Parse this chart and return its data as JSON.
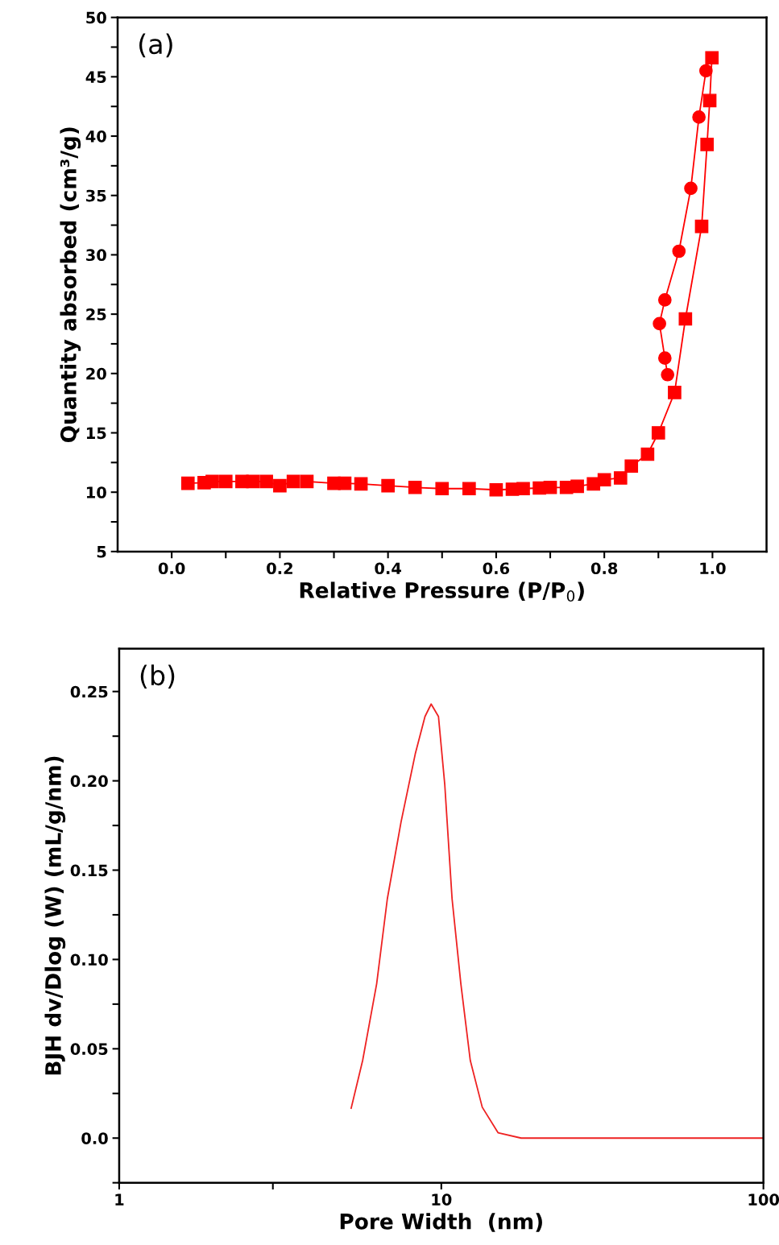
{
  "chart_data": [
    {
      "type": "line",
      "xlabel": "Relative Pressure (P/P$_{0}$)",
      "ylabel": "Quantity absorbed (cm³/g)",
      "annotations": [
        "(a)"
      ],
      "xlim": [
        -0.1,
        1.1
      ],
      "xticks": [
        {
          "value": 0.0,
          "label": "0.0"
        },
        {
          "value": 0.1,
          "label": null
        },
        {
          "value": 0.2,
          "label": "0.2"
        },
        {
          "value": 0.3,
          "label": null
        },
        {
          "value": 0.4,
          "label": "0.4"
        },
        {
          "value": 0.5,
          "label": null
        },
        {
          "value": 0.6,
          "label": "0.6"
        },
        {
          "value": 0.7,
          "label": null
        },
        {
          "value": 0.8,
          "label": "0.8"
        },
        {
          "value": 0.9,
          "label": null
        },
        {
          "value": 1.0,
          "label": "1.0"
        }
      ],
      "ylim": [
        5,
        50
      ],
      "yticks": [
        5,
        {
          "value": 7.5,
          "label": null
        },
        10,
        {
          "value": 12.5,
          "label": null
        },
        15,
        {
          "value": 17.5,
          "label": null
        },
        20,
        {
          "value": 22.5,
          "label": null
        },
        25,
        {
          "value": 27.5,
          "label": null
        },
        30,
        {
          "value": 32.5,
          "label": null
        },
        35,
        {
          "value": 37.5,
          "label": null
        },
        40,
        {
          "value": 42.5,
          "label": null
        },
        45,
        {
          "value": 47.5,
          "label": null
        },
        50
      ],
      "grid": false,
      "legend": false,
      "line_style": "solid",
      "series": [
        {
          "color": "#ff0000",
          "marker": "square",
          "x": [
            0.03,
            0.06,
            0.075,
            0.1,
            0.13,
            0.15,
            0.175,
            0.2,
            0.225,
            0.24,
            0.25,
            0.3,
            0.32,
            0.35,
            0.4,
            0.45,
            0.5,
            0.55,
            0.6,
            0.63,
            0.65,
            0.68,
            0.7,
            0.73,
            0.75,
            0.78,
            0.8,
            0.83,
            0.85,
            0.88,
            0.9,
            0.93,
            0.95,
            0.98,
            0.99,
            0.995,
            0.999
          ],
          "values": [
            10.75,
            10.8,
            10.9,
            10.9,
            10.9,
            10.9,
            10.9,
            10.55,
            10.9,
            null,
            10.9,
            10.75,
            10.75,
            10.7,
            10.55,
            10.4,
            10.3,
            10.3,
            10.2,
            10.25,
            10.3,
            10.35,
            10.4,
            10.4,
            10.5,
            10.7,
            11.05,
            11.2,
            12.2,
            13.2,
            15.0,
            18.4,
            24.6,
            32.4,
            39.3,
            43.0,
            46.6
          ]
        },
        {
          "color": "#ff0000",
          "marker": "circle",
          "x": [
            0.988,
            0.975,
            0.96,
            0.938,
            0.912,
            0.902,
            0.912,
            0.917
          ],
          "values": [
            45.5,
            41.6,
            35.6,
            30.3,
            26.2,
            24.2,
            21.3,
            19.9
          ]
        }
      ]
    },
    {
      "type": "line",
      "xlabel": "Pore Width  (nm)",
      "ylabel": "BJH dv/Dlog (W) (mL/g/nm)",
      "annotations": [
        "(b)"
      ],
      "log": "x",
      "xlim": [
        1,
        100
      ],
      "xticks": [
        1,
        {
          "value": 3,
          "label": null
        },
        10,
        100
      ],
      "ylim": [
        -0.025,
        0.274
      ],
      "yticks": [
        {
          "value": -0.025,
          "label": null
        },
        {
          "value": 0.0,
          "label": "0.0"
        },
        {
          "value": 0.025,
          "label": null
        },
        {
          "value": 0.05,
          "label": "0.05"
        },
        {
          "value": 0.075,
          "label": null
        },
        {
          "value": 0.1,
          "label": "0.10"
        },
        {
          "value": 0.125,
          "label": null
        },
        {
          "value": 0.15,
          "label": "0.15"
        },
        {
          "value": 0.175,
          "label": null
        },
        {
          "value": 0.2,
          "label": "0.20"
        },
        {
          "value": 0.225,
          "label": null
        },
        {
          "value": 0.25,
          "label": "0.25"
        }
      ],
      "grid": false,
      "legend": false,
      "line_style": "solid",
      "marker": "none",
      "series": [
        {
          "color": "#ee2222",
          "x": [
            5.25,
            5.7,
            6.3,
            6.8,
            7.5,
            8.3,
            8.9,
            9.3,
            9.8,
            10.25,
            10.8,
            11.5,
            12.3,
            13.4,
            15.0,
            17.7,
            29,
            100
          ],
          "values": [
            0.0167,
            0.0435,
            0.0864,
            0.134,
            0.177,
            0.215,
            0.236,
            0.243,
            0.236,
            0.198,
            0.134,
            0.0864,
            0.0435,
            0.0173,
            0.003,
            0.0,
            0.0,
            0.0
          ]
        }
      ]
    }
  ]
}
